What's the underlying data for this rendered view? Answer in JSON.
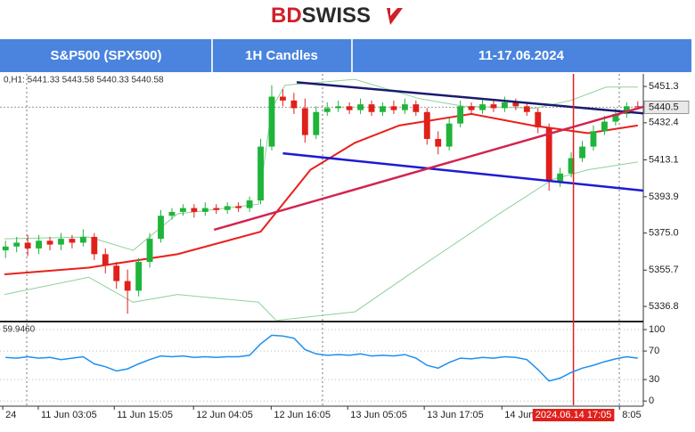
{
  "logo": {
    "left": "BD",
    "right": "SWISS"
  },
  "header": {
    "cells": [
      "S&P500 (SPX500)",
      "1H Candles",
      "11-17.06.2024"
    ]
  },
  "chart_data": [
    {
      "type": "candlestick",
      "info": "0,H1: 5441.33 5443.58 5440.33 5440.58",
      "xlim": [
        0,
        116
      ],
      "ylim": [
        5329.4,
        5456.9
      ],
      "yticks": [
        5451.3,
        5432.4,
        5413.1,
        5393.9,
        {
          "value": 5375.0,
          "label": "5375.0"
        },
        5355.7,
        5336.8
      ],
      "xticks": [
        {
          "value": 0.5,
          "label": "24"
        },
        {
          "value": 6.9,
          "label": "11 Jun 03:05"
        },
        {
          "value": 20.6,
          "label": "11 Jun 15:05"
        },
        {
          "value": 34.9,
          "label": "12 Jun 04:05"
        },
        {
          "value": 48.9,
          "label": "12 Jun 16:05"
        },
        {
          "value": 62.7,
          "label": "13 Jun 05:05"
        },
        {
          "value": 76.5,
          "label": "13 Jun 17:05"
        },
        {
          "value": 90.5,
          "label": "14 Jun"
        },
        {
          "value": 111.7,
          "label": "8:05"
        }
      ],
      "crosshair": {
        "x": 103.4,
        "label": "2024.06.14 17:05",
        "color": "#e0201b"
      },
      "last_price": 5440.5,
      "up_color": "#1fb43a",
      "down_color": "#e0201b",
      "x": [
        1,
        3,
        5,
        7,
        9,
        11,
        13,
        15,
        17,
        19,
        21,
        23,
        25,
        27,
        29,
        31,
        33,
        35,
        37,
        39,
        41,
        43,
        45,
        47,
        49,
        51,
        53,
        55,
        57,
        59,
        61,
        63,
        65,
        67,
        69,
        71,
        73,
        75,
        77,
        79,
        81,
        83,
        85,
        87,
        89,
        91,
        93,
        95,
        97,
        99,
        101,
        103,
        105,
        107,
        109,
        111,
        113,
        115
      ],
      "open": [
        5366,
        5368,
        5370,
        5367,
        5371,
        5369,
        5372,
        5370,
        5373,
        5364,
        5358,
        5350,
        5345,
        5360,
        5372,
        5384,
        5386,
        5388,
        5386,
        5388,
        5387,
        5389,
        5388,
        5392,
        5420,
        5446,
        5444,
        5440,
        5426,
        5438,
        5440,
        5441,
        5439,
        5442,
        5438,
        5441,
        5439,
        5442,
        5438,
        5424,
        5420,
        5432,
        5441,
        5439,
        5442,
        5440,
        5443,
        5441,
        5438,
        5430,
        5402,
        5406,
        5414,
        5420,
        5428,
        5433,
        5437,
        5441
      ],
      "high": [
        5371,
        5373,
        5374,
        5374,
        5373,
        5375,
        5374,
        5377,
        5375,
        5367,
        5360,
        5356,
        5362,
        5375,
        5387,
        5388,
        5390,
        5390,
        5391,
        5390,
        5391,
        5391,
        5394,
        5424,
        5452,
        5450,
        5448,
        5445,
        5441,
        5443,
        5444,
        5443,
        5445,
        5444,
        5443,
        5444,
        5445,
        5444,
        5440,
        5428,
        5435,
        5444,
        5443,
        5445,
        5444,
        5446,
        5445,
        5443,
        5440,
        5432,
        5409,
        5417,
        5423,
        5431,
        5436,
        5440,
        5443,
        5443.58
      ],
      "low": [
        5362,
        5365,
        5363,
        5364,
        5366,
        5366,
        5367,
        5368,
        5361,
        5354,
        5346,
        5333,
        5342,
        5357,
        5370,
        5382,
        5384,
        5383,
        5384,
        5385,
        5385,
        5386,
        5386,
        5390,
        5418,
        5441,
        5437,
        5422,
        5424,
        5436,
        5438,
        5437,
        5437,
        5436,
        5436,
        5437,
        5437,
        5436,
        5421,
        5416,
        5418,
        5430,
        5437,
        5437,
        5438,
        5438,
        5439,
        5436,
        5427,
        5397,
        5399,
        5404,
        5412,
        5418,
        5426,
        5431,
        5435,
        5440.33
      ],
      "close": [
        5368,
        5370,
        5367,
        5371,
        5369,
        5372,
        5370,
        5373,
        5364,
        5358,
        5350,
        5345,
        5360,
        5372,
        5384,
        5386,
        5388,
        5386,
        5388,
        5387,
        5389,
        5388,
        5392,
        5420,
        5446,
        5444,
        5440,
        5426,
        5438,
        5440,
        5441,
        5439,
        5442,
        5438,
        5441,
        5439,
        5442,
        5438,
        5424,
        5420,
        5432,
        5441,
        5439,
        5442,
        5440,
        5443,
        5441,
        5438,
        5430,
        5402,
        5406,
        5414,
        5420,
        5428,
        5433,
        5437,
        5441,
        5440.58
      ],
      "overlays": [
        {
          "color": "#8fd19a",
          "x": [
            0.8,
            16,
            24,
            32,
            46.6,
            49,
            51.4,
            64,
            75.6,
            83.6,
            96.5,
            102.9,
            109.3,
            115
          ],
          "values": [
            5372,
            5373,
            5366,
            5385,
            5390,
            5440,
            5452,
            5455,
            5445,
            5441,
            5440,
            5444,
            5451,
            5451
          ]
        },
        {
          "color": "#8fd19a",
          "x": [
            0.8,
            16,
            24,
            32,
            46.6,
            49.8,
            64,
            75.6,
            90,
            99.7,
            106.1,
            115
          ],
          "values": [
            5343,
            5352,
            5339,
            5343,
            5339,
            5329.5,
            5334,
            5357,
            5385,
            5403,
            5408,
            5412
          ]
        },
        {
          "color": "#e8201c",
          "x": [
            0.8,
            16,
            32,
            47,
            56,
            64,
            72,
            85,
            96,
            106,
            115
          ],
          "values": [
            5353.5,
            5357,
            5364,
            5375.7,
            5408,
            5422,
            5431,
            5437,
            5431,
            5427,
            5431
          ]
        }
      ],
      "trendlines": [
        {
          "color": "#1a1a6e",
          "x": [
            53.5,
            116
          ],
          "values": [
            5453.5,
            5437.3
          ]
        },
        {
          "color": "#1c1cd0",
          "x": [
            51,
            116
          ],
          "values": [
            5416.5,
            5397.1
          ]
        },
        {
          "color": "#d2244e",
          "x": [
            38.6,
            116
          ],
          "values": [
            5376.7,
            5440.7
          ]
        }
      ]
    },
    {
      "type": "line",
      "title": "59.9460",
      "xlim": [
        0,
        116
      ],
      "ylim": [
        -6,
        110
      ],
      "yticks": [
        100,
        70,
        30,
        0
      ],
      "color": "#1e8ff0",
      "x": [
        1,
        3,
        5,
        7,
        9,
        11,
        13,
        15,
        17,
        19,
        21,
        23,
        25,
        27,
        29,
        31,
        33,
        35,
        37,
        39,
        41,
        43,
        45,
        47,
        49,
        51,
        53,
        55,
        57,
        59,
        61,
        63,
        65,
        67,
        69,
        71,
        73,
        75,
        77,
        79,
        81,
        83,
        85,
        87,
        89,
        91,
        93,
        95,
        97,
        99,
        101,
        103,
        105,
        107,
        109,
        111,
        113,
        115
      ],
      "values": [
        61,
        60,
        62,
        60,
        61,
        58,
        60,
        62,
        52,
        48,
        42,
        45,
        52,
        58,
        63,
        62,
        63,
        61,
        62,
        61,
        62,
        62,
        64,
        80,
        92,
        91,
        88,
        72,
        66,
        64,
        65,
        64,
        66,
        63,
        64,
        63,
        65,
        60,
        50,
        46,
        54,
        60,
        59,
        61,
        60,
        62,
        61,
        58,
        44,
        28,
        32,
        40,
        46,
        50,
        55,
        59,
        62,
        59.946
      ]
    }
  ]
}
